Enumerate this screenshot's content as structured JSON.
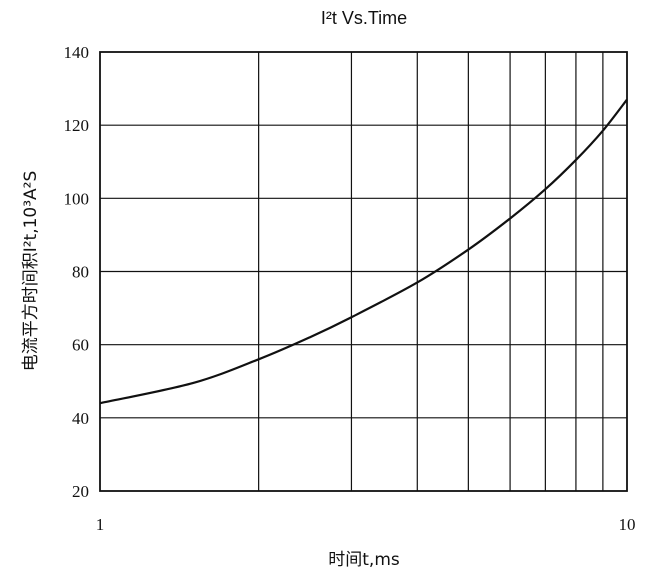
{
  "chart_data": {
    "type": "line",
    "title": "I²t  Vs.Time",
    "xlabel": "时间t,ms",
    "ylabel": "电流平方时间积I²t,10³A²S",
    "xscale": "log",
    "xlim": [
      1,
      10
    ],
    "ylim": [
      20,
      140
    ],
    "yticks": [
      20,
      40,
      60,
      80,
      100,
      120,
      140
    ],
    "xtick_labels": [
      {
        "value": 1,
        "label": "1"
      },
      {
        "value": 10,
        "label": "10"
      }
    ],
    "x_gridlines": [
      2,
      3,
      4,
      5,
      6,
      7,
      8,
      9
    ],
    "y_gridlines": [
      40,
      60,
      80,
      100,
      120
    ],
    "grid": true,
    "series": [
      {
        "x": [
          1,
          1.5,
          2,
          2.5,
          3,
          4,
          5,
          6,
          7,
          8,
          9,
          10
        ],
        "y": [
          44,
          49.5,
          56,
          62,
          67.5,
          77,
          86,
          94.5,
          102.5,
          110.5,
          118.5,
          127
        ]
      }
    ]
  }
}
